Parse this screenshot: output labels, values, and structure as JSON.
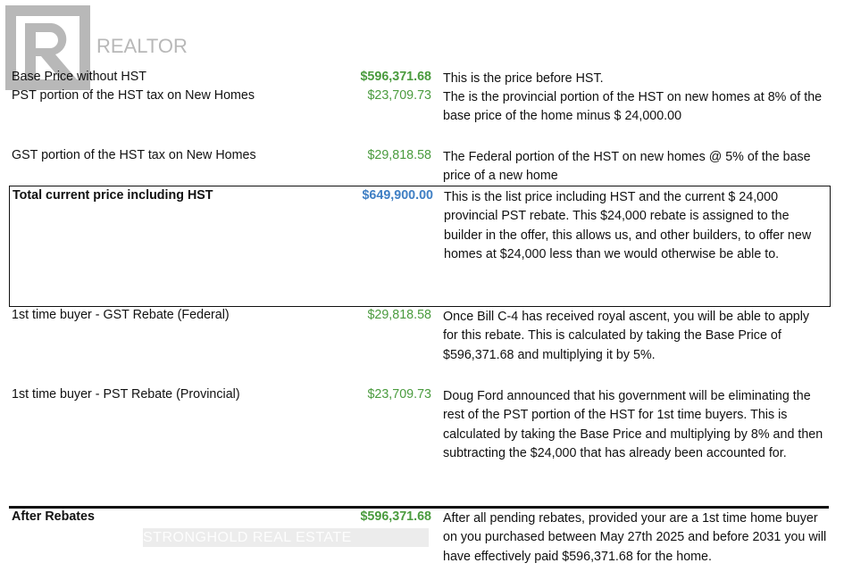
{
  "logo": {
    "text": "REALTOR",
    "icon": "realtor-r-logo"
  },
  "watermark": "STRONGHOLD REAL ESTATE",
  "rows": [
    {
      "label": "Base Price without HST",
      "amount": "$596,371.68",
      "desc": "This is the price before HST."
    },
    {
      "label": "PST portion of the HST tax on New Homes",
      "amount": "$23,709.73",
      "desc": "The is the provincial portion of the HST on new homes at 8% of the base price of the home minus $ 24,000.00"
    },
    {
      "label": "GST portion of the HST tax on New Homes",
      "amount": "$29,818.58",
      "desc": "The Federal portion of the HST on new homes @ 5% of the base price of a new home"
    },
    {
      "label": "Total current price including HST",
      "amount": "$649,900.00",
      "desc": "This is the list price including HST and the current $ 24,000 provincial PST rebate.  This $24,000 rebate is assigned to the builder in the offer, this allows us, and other builders, to offer new homes at $24,000 less than we would otherwise be able to."
    },
    {
      "label": "1st time buyer - GST Rebate (Federal)",
      "amount": "$29,818.58",
      "desc": "Once Bill C-4 has received royal ascent, you will be able to apply for this rebate. This is calculated by taking the Base Price of $596,371.68 and multiplying it by 5%."
    },
    {
      "label": "1st time buyer - PST Rebate (Provincial)",
      "amount": "$23,709.73",
      "desc": "Doug Ford announced that his government will be eliminating the rest of the PST portion of the HST for 1st time buyers.  This is calculated by taking the Base Price and multiplying by 8% and then subtracting the $24,000 that has already been accounted for."
    },
    {
      "label": "After Rebates",
      "amount": "$596,371.68",
      "desc": "After all pending rebates, provided your are a 1st time home buyer on you purchased between May 27th  2025 and before 2031 you will have effectively paid $596,371.68 for the home."
    }
  ],
  "colors": {
    "amount_green": "#4a9b3e",
    "amount_blue": "#3f7fc4"
  }
}
